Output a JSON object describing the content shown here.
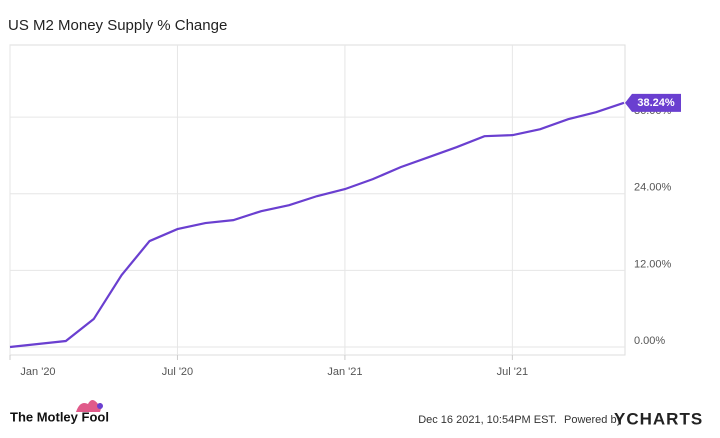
{
  "chart_data": {
    "type": "line",
    "title": "US M2 Money Supply % Change",
    "x": [
      "2020-01",
      "2020-02",
      "2020-03",
      "2020-04",
      "2020-05",
      "2020-06",
      "2020-07",
      "2020-08",
      "2020-09",
      "2020-10",
      "2020-11",
      "2020-12",
      "2021-01",
      "2021-02",
      "2021-03",
      "2021-04",
      "2021-05",
      "2021-06",
      "2021-07",
      "2021-08",
      "2021-09",
      "2021-10",
      "2021-11"
    ],
    "series": [
      {
        "name": "US M2 Money Supply % Change",
        "color": "#6a3fd0",
        "values": [
          0,
          0.47,
          0.94,
          4.38,
          11.27,
          16.59,
          18.47,
          19.41,
          19.87,
          21.28,
          22.22,
          23.63,
          24.73,
          26.29,
          28.17,
          29.73,
          31.3,
          33.02,
          33.18,
          34.12,
          35.68,
          36.78,
          38.24
        ],
        "last_value_label": "38.24%"
      }
    ],
    "xlim": [
      "2020-01",
      "2021-11"
    ],
    "xticks": [
      {
        "value": "2020-01",
        "label": "Jan '20"
      },
      {
        "value": "2020-07",
        "label": "Jul '20"
      },
      {
        "value": "2021-01",
        "label": "Jan '21"
      },
      {
        "value": "2021-07",
        "label": "Jul '21"
      }
    ],
    "ylim": [
      -1.25,
      47.3
    ],
    "yticks": [
      {
        "value": 0,
        "label": "0.00%"
      },
      {
        "value": 12,
        "label": "12.00%"
      },
      {
        "value": 24,
        "label": "24.00%"
      },
      {
        "value": 36,
        "label": "36.00%"
      }
    ],
    "grid": true
  },
  "footer": {
    "brand": "The Motley Fool",
    "timestamp": "Dec 16 2021, 10:54PM EST.",
    "powered_by": "Powered by",
    "provider": "YCHARTS"
  }
}
